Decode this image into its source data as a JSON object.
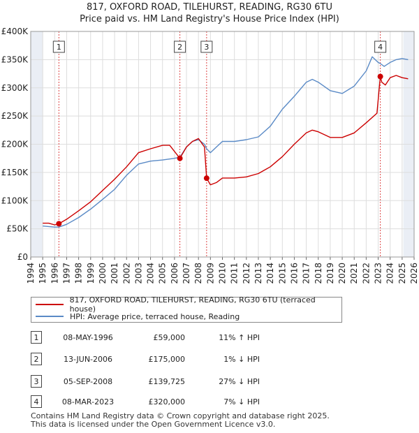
{
  "title": "817, OXFORD ROAD, TILEHURST, READING, RG30 6TU",
  "subtitle": "Price paid vs. HM Land Registry's House Price Index (HPI)",
  "colors": {
    "property": "#cc0000",
    "hpi": "#5a8ac6",
    "shade": "#eaeef5",
    "marker_line": "#dd4444",
    "grid": "#dddddd"
  },
  "chart_data": {
    "type": "line",
    "title": "817, OXFORD ROAD, TILEHURST, READING, RG30 6TU",
    "subtitle": "Price paid vs. HM Land Registry's House Price Index (HPI)",
    "xlim": [
      1994,
      2026
    ],
    "ylim": [
      0,
      400000
    ],
    "x_ticks": [
      "1994",
      "1995",
      "1996",
      "1997",
      "1998",
      "1999",
      "2000",
      "2001",
      "2002",
      "2003",
      "2004",
      "2005",
      "2006",
      "2007",
      "2008",
      "2009",
      "2010",
      "2011",
      "2012",
      "2013",
      "2014",
      "2015",
      "2016",
      "2017",
      "2018",
      "2019",
      "2020",
      "2021",
      "2022",
      "2023",
      "2024",
      "2025",
      "2026"
    ],
    "y_ticks": [
      {
        "label": "£0",
        "value": 0
      },
      {
        "label": "£50K",
        "value": 50000
      },
      {
        "label": "£100K",
        "value": 100000
      },
      {
        "label": "£150K",
        "value": 150000
      },
      {
        "label": "£200K",
        "value": 200000
      },
      {
        "label": "£250K",
        "value": 250000
      },
      {
        "label": "£300K",
        "value": 300000
      },
      {
        "label": "£350K",
        "value": 350000
      },
      {
        "label": "£400K",
        "value": 400000
      }
    ],
    "shaded_ranges": [
      [
        1994,
        1995.0
      ],
      [
        2025.1,
        2026
      ]
    ],
    "series": [
      {
        "name": "817, OXFORD ROAD, TILEHURST, READING, RG30 6TU (terraced house)",
        "color": "#cc0000",
        "x": [
          1995.0,
          1995.5,
          1996.0,
          1996.35,
          1997.0,
          1998.0,
          1999.0,
          2000.0,
          2001.0,
          2002.0,
          2003.0,
          2004.0,
          2005.0,
          2005.6,
          2006.45,
          2007.0,
          2007.5,
          2008.0,
          2008.5,
          2008.68,
          2009.0,
          2009.5,
          2010.0,
          2011.0,
          2012.0,
          2013.0,
          2014.0,
          2015.0,
          2016.0,
          2017.0,
          2017.5,
          2018.0,
          2019.0,
          2020.0,
          2021.0,
          2022.0,
          2022.9,
          2023.18,
          2023.3,
          2023.6,
          2024.0,
          2024.5,
          2025.0,
          2025.5
        ],
        "values": [
          60000,
          60000,
          57000,
          59000,
          67000,
          82000,
          98000,
          118000,
          138000,
          160000,
          185000,
          192000,
          198000,
          198000,
          175000,
          195000,
          205000,
          210000,
          195000,
          139725,
          128000,
          132000,
          140000,
          140000,
          142000,
          148000,
          160000,
          178000,
          200000,
          220000,
          225000,
          222000,
          212000,
          212000,
          220000,
          238000,
          255000,
          320000,
          310000,
          305000,
          318000,
          322000,
          318000,
          316000
        ]
      },
      {
        "name": "HPI: Average price, terraced house, Reading",
        "color": "#5a8ac6",
        "x": [
          1995.0,
          1995.5,
          1996.0,
          1996.35,
          1997.0,
          1998.0,
          1999.0,
          2000.0,
          2001.0,
          2002.0,
          2003.0,
          2004.0,
          2005.0,
          2006.0,
          2006.45,
          2007.0,
          2007.5,
          2008.0,
          2008.5,
          2008.68,
          2009.0,
          2009.5,
          2010.0,
          2011.0,
          2012.0,
          2013.0,
          2014.0,
          2015.0,
          2016.0,
          2017.0,
          2017.5,
          2018.0,
          2019.0,
          2020.0,
          2021.0,
          2022.0,
          2022.5,
          2023.0,
          2023.18,
          2023.5,
          2024.0,
          2024.5,
          2025.0,
          2025.5
        ],
        "values": [
          55000,
          54000,
          53000,
          53000,
          58000,
          70000,
          85000,
          102000,
          120000,
          145000,
          165000,
          170000,
          172000,
          175000,
          177000,
          195000,
          205000,
          208000,
          200000,
          192000,
          185000,
          195000,
          205000,
          205000,
          208000,
          213000,
          232000,
          262000,
          285000,
          310000,
          315000,
          310000,
          295000,
          290000,
          303000,
          330000,
          355000,
          345000,
          343000,
          338000,
          345000,
          350000,
          352000,
          350000
        ]
      }
    ],
    "markers": [
      {
        "label": "1",
        "x": 1996.35,
        "value": 59000
      },
      {
        "label": "2",
        "x": 2006.45,
        "value": 175000
      },
      {
        "label": "3",
        "x": 2008.68,
        "value": 139725
      },
      {
        "label": "4",
        "x": 2023.18,
        "value": 320000
      }
    ]
  },
  "legend": {
    "property_label": "817, OXFORD ROAD, TILEHURST, READING, RG30 6TU (terraced house)",
    "hpi_label": "HPI: Average price, terraced house, Reading"
  },
  "transactions": [
    {
      "num": "1",
      "date": "08-MAY-1996",
      "price": "£59,000",
      "hpi": "11% ↑ HPI"
    },
    {
      "num": "2",
      "date": "13-JUN-2006",
      "price": "£175,000",
      "hpi": "1% ↓ HPI"
    },
    {
      "num": "3",
      "date": "05-SEP-2008",
      "price": "£139,725",
      "hpi": "27% ↓ HPI"
    },
    {
      "num": "4",
      "date": "08-MAR-2023",
      "price": "£320,000",
      "hpi": "7% ↓ HPI"
    }
  ],
  "footer": {
    "line1": "Contains HM Land Registry data © Crown copyright and database right 2025.",
    "line2": "This data is licensed under the Open Government Licence v3.0."
  }
}
